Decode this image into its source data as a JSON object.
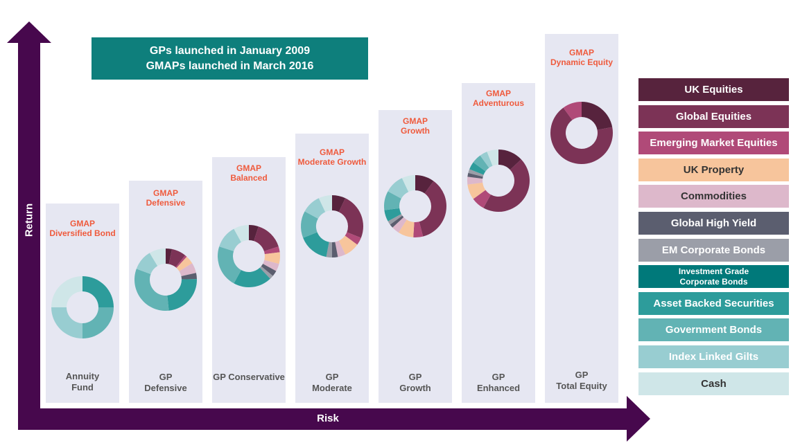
{
  "banner": {
    "line1": "GPs launched in January 2009",
    "line2": "GMAPs launched in March 2016"
  },
  "axes": {
    "y_label": "Return",
    "x_label": "Risk"
  },
  "colors": {
    "axis": "#47084d",
    "column_bg": "#e6e7f2",
    "gmap_title": "#ef5a3c"
  },
  "chart_data": {
    "type": "pie",
    "title": "",
    "legend_placement": "right",
    "assets": [
      {
        "name": "UK Equities",
        "color": "#57233d",
        "text": "#ffffff"
      },
      {
        "name": "Global Equities",
        "color": "#7c3356",
        "text": "#ffffff"
      },
      {
        "name": "Emerging Market Equities",
        "color": "#b04a78",
        "text": "#ffffff"
      },
      {
        "name": "UK Property",
        "color": "#f7c59c",
        "text": "#333333"
      },
      {
        "name": "Commodities",
        "color": "#ddb8cb",
        "text": "#333333"
      },
      {
        "name": "Global High Yield",
        "color": "#5b5e6f",
        "text": "#ffffff"
      },
      {
        "name": "EM Corporate Bonds",
        "color": "#9b9ea8",
        "text": "#ffffff"
      },
      {
        "name": "Investment Grade Corporate Bonds",
        "label_line1": "Investment Grade",
        "label_line2": "Corporate Bonds",
        "color": "#00797a",
        "text": "#ffffff"
      },
      {
        "name": "Asset Backed Securities",
        "color": "#2d9c9b",
        "text": "#ffffff"
      },
      {
        "name": "Government Bonds",
        "color": "#62b3b4",
        "text": "#ffffff"
      },
      {
        "name": "Index Linked Gilts",
        "color": "#98cdd1",
        "text": "#ffffff"
      },
      {
        "name": "Cash",
        "color": "#cfe6e8",
        "text": "#333333"
      }
    ],
    "portfolios": [
      {
        "gmap_line1": "GMAP",
        "gmap_line2": "Diversified Bond",
        "name_line1": "Annuity",
        "name_line2": "Fund",
        "values": [
          0,
          0,
          0,
          0,
          0,
          0,
          0,
          0,
          25,
          25,
          25,
          25
        ]
      },
      {
        "gmap_line1": "GMAP",
        "gmap_line2": "Defensive",
        "name_line1": "GP",
        "name_line2": "Defensive",
        "values": [
          3,
          7,
          1,
          4,
          5,
          3,
          0,
          0,
          22,
          30,
          10,
          8
        ]
      },
      {
        "gmap_line1": "GMAP",
        "gmap_line2": "Balanced",
        "name_line1": "",
        "name_line2": "GP Conservative",
        "values": [
          5,
          15,
          3,
          6,
          4,
          3,
          2,
          0,
          20,
          22,
          12,
          8
        ]
      },
      {
        "gmap_line1": "GMAP",
        "gmap_line2": "Moderate Growth",
        "name_line1": "GP",
        "name_line2": "Moderate",
        "values": [
          7,
          24,
          4,
          8,
          4,
          3,
          3,
          0,
          16,
          14,
          10,
          7
        ]
      },
      {
        "gmap_line1": "GMAP",
        "gmap_line2": "Growth",
        "name_line1": "GP",
        "name_line2": "Growth",
        "values": [
          10,
          36,
          5,
          8,
          4,
          2,
          2,
          0,
          6,
          10,
          10,
          7
        ]
      },
      {
        "gmap_line1": "GMAP",
        "gmap_line2": "Adventurous",
        "name_line1": "GP",
        "name_line2": "Enhanced",
        "values": [
          13,
          45,
          7,
          8,
          4,
          2,
          2,
          0,
          4,
          5,
          4,
          6
        ]
      },
      {
        "gmap_line1": "GMAP",
        "gmap_line2": "Dynamic Equity",
        "name_line1": "GP",
        "name_line2": "Total Equity",
        "values": [
          22,
          68,
          10,
          0,
          0,
          0,
          0,
          0,
          0,
          0,
          0,
          0
        ]
      }
    ]
  }
}
